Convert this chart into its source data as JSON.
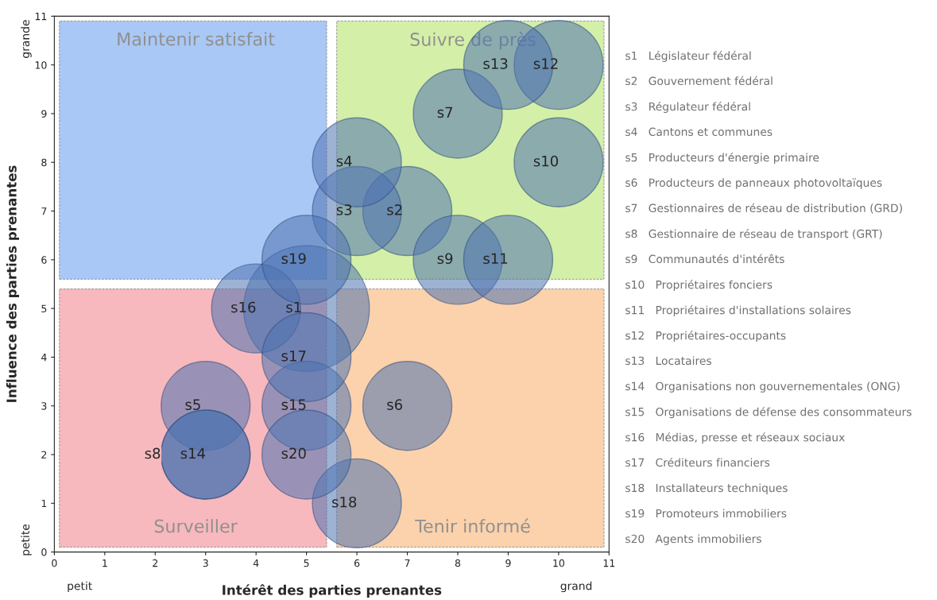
{
  "chart_data": {
    "type": "bubble",
    "xlabel": "Intérêt des parties prenantes",
    "ylabel": "Influence des parties prenantes",
    "xlim": [
      0,
      11
    ],
    "ylim": [
      0,
      11
    ],
    "xticks": [
      0,
      1,
      2,
      3,
      4,
      5,
      6,
      7,
      8,
      9,
      10,
      11
    ],
    "yticks": [
      0,
      1,
      2,
      3,
      4,
      5,
      6,
      7,
      8,
      9,
      10,
      11
    ],
    "grid": false,
    "series": [
      {
        "name": "s1",
        "color": "#4f72b0",
        "x": [
          5
        ],
        "values": [
          5
        ],
        "sizes": [
          1
        ]
      },
      {
        "name": "s2",
        "color": "#4f72b0",
        "x": [
          7
        ],
        "values": [
          7
        ],
        "sizes": [
          0.5
        ]
      },
      {
        "name": "s3",
        "color": "#4f72b0",
        "x": [
          6
        ],
        "values": [
          7
        ],
        "sizes": [
          0.5
        ]
      },
      {
        "name": "s4",
        "color": "#4f72b0",
        "x": [
          6
        ],
        "values": [
          8
        ],
        "sizes": [
          0.5
        ]
      },
      {
        "name": "s5",
        "color": "#4f72b0",
        "x": [
          3
        ],
        "values": [
          3
        ],
        "sizes": [
          0.5
        ]
      },
      {
        "name": "s6",
        "color": "#4f72b0",
        "x": [
          7
        ],
        "values": [
          3
        ],
        "sizes": [
          0.5
        ]
      },
      {
        "name": "s7",
        "color": "#4f72b0",
        "x": [
          8
        ],
        "values": [
          9
        ],
        "sizes": [
          0.5
        ]
      },
      {
        "name": "s8",
        "color": "#4f72b0",
        "x": [
          3
        ],
        "values": [
          2
        ],
        "sizes": [
          0.5
        ]
      },
      {
        "name": "s9",
        "color": "#4f72b0",
        "x": [
          8
        ],
        "values": [
          6
        ],
        "sizes": [
          0.5
        ]
      },
      {
        "name": "s10",
        "color": "#4f72b0",
        "x": [
          10
        ],
        "values": [
          8
        ],
        "sizes": [
          0.5
        ]
      },
      {
        "name": "s11",
        "color": "#4f72b0",
        "x": [
          9
        ],
        "values": [
          6
        ],
        "sizes": [
          0.5
        ]
      },
      {
        "name": "s12",
        "color": "#4f72b0",
        "x": [
          10
        ],
        "values": [
          10
        ],
        "sizes": [
          0.5
        ]
      },
      {
        "name": "s13",
        "color": "#4f72b0",
        "x": [
          9
        ],
        "values": [
          10
        ],
        "sizes": [
          0.5
        ]
      },
      {
        "name": "s14",
        "color": "#4f72b0",
        "x": [
          3
        ],
        "values": [
          2
        ],
        "sizes": [
          0.5
        ]
      },
      {
        "name": "s15",
        "color": "#4f72b0",
        "x": [
          5
        ],
        "values": [
          3
        ],
        "sizes": [
          0.5
        ]
      },
      {
        "name": "s16",
        "color": "#4f72b0",
        "x": [
          4
        ],
        "values": [
          5
        ],
        "sizes": [
          0.5
        ]
      },
      {
        "name": "s17",
        "color": "#4f72b0",
        "x": [
          5
        ],
        "values": [
          4
        ],
        "sizes": [
          0.5
        ]
      },
      {
        "name": "s18",
        "color": "#4f72b0",
        "x": [
          6
        ],
        "values": [
          1
        ],
        "sizes": [
          0.5
        ]
      },
      {
        "name": "s19",
        "color": "#4f72b0",
        "x": [
          5
        ],
        "values": [
          6
        ],
        "sizes": [
          0.5
        ]
      },
      {
        "name": "s20",
        "color": "#4f72b0",
        "x": [
          5
        ],
        "values": [
          2
        ],
        "sizes": [
          0.5
        ]
      }
    ],
    "annotations": [
      "Maintenir satisfait",
      "Suivre de près",
      "Surveiller",
      "Tenir informé",
      "petit",
      "grand",
      "petite",
      "grande",
      "s1   Législateur fédéral",
      "s2   Gouvernement fédéral",
      "s3   Régulateur fédéral",
      "s4   Cantons et communes",
      "s5   Producteurs d'énergie primaire",
      "s6   Producteurs de panneaux photovoltaïques",
      "s7   Gestionnaires de réseau de distribution (GRD)",
      "s8   Gestionnaire de réseau de transport (GRT)",
      "s9   Communautés d'intérêts",
      "s10   Propriétaires fonciers",
      "s11   Propriétaires d'installations solaires",
      "s12   Propriétaires-occupants",
      "s13   Locataires",
      "s14   Organisations non gouvernementales (ONG)",
      "s15   Organisations de défense des consommateurs",
      "s16   Médias, presse et réseaux sociaux",
      "s17   Créditeurs financiers",
      "s18   Installateurs techniques",
      "s19   Promoteurs immobiliers",
      "s20   Agents immobiliers"
    ]
  }
}
